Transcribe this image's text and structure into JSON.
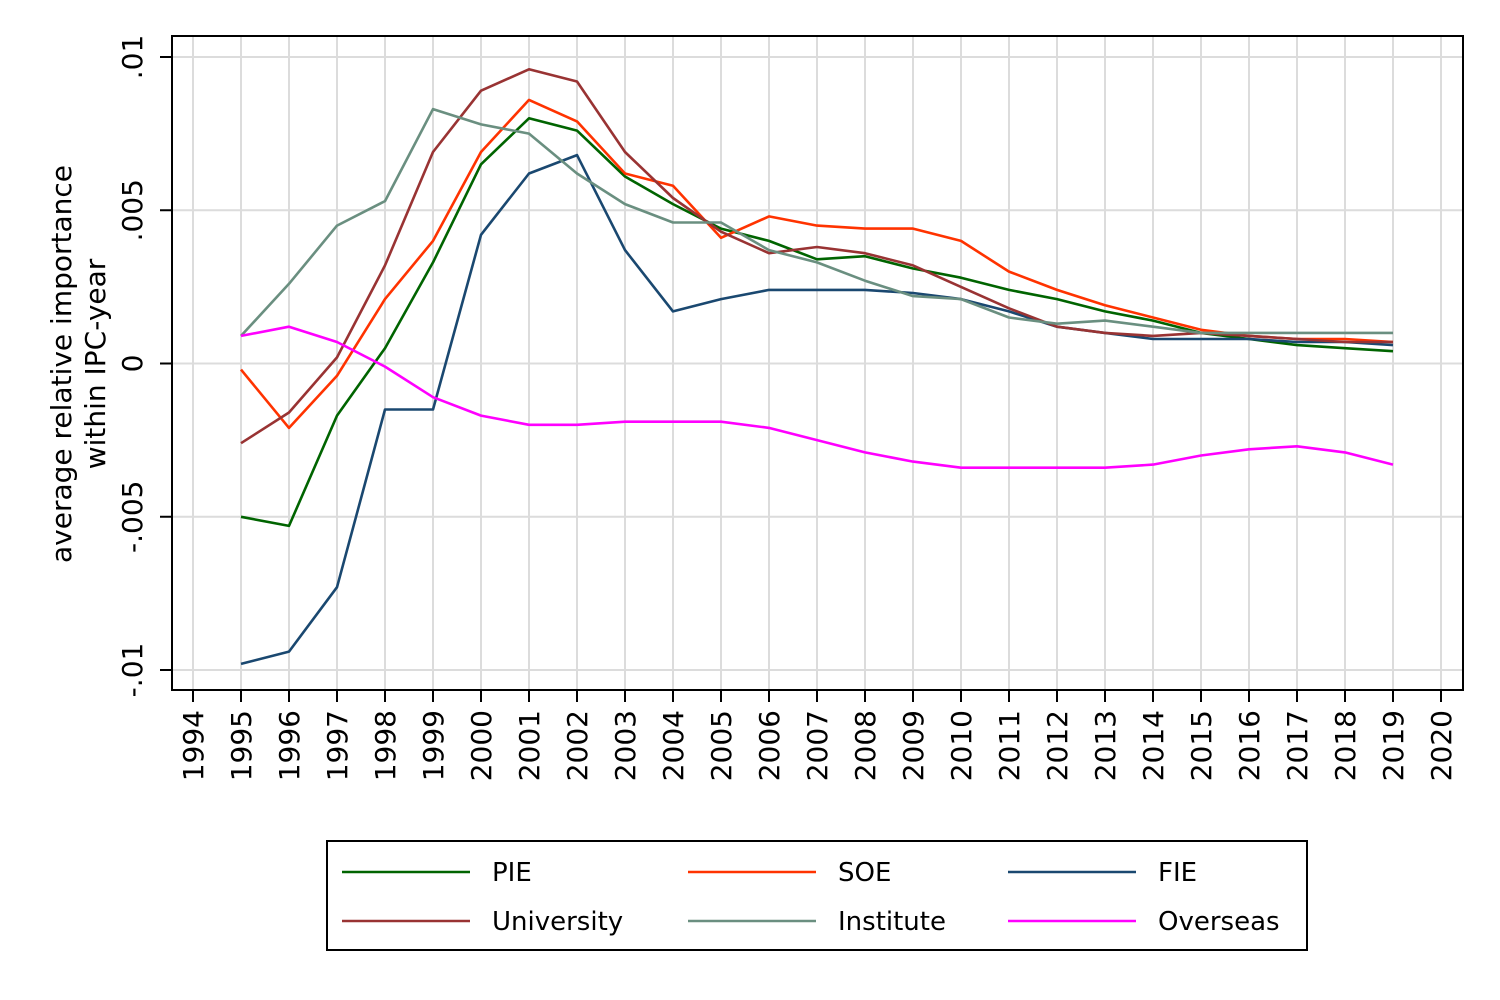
{
  "chart_data": {
    "type": "line",
    "title": "",
    "xlabel": "",
    "ylabel_lines": [
      "average relative importance",
      "within IPC-year"
    ],
    "xlim": [
      1994,
      2020
    ],
    "ylim": [
      -0.01,
      0.01
    ],
    "x_ticks": [
      1994,
      1995,
      1996,
      1997,
      1998,
      1999,
      2000,
      2001,
      2002,
      2003,
      2004,
      2005,
      2006,
      2007,
      2008,
      2009,
      2010,
      2011,
      2012,
      2013,
      2014,
      2015,
      2016,
      2017,
      2018,
      2019,
      2020
    ],
    "x_tick_labels": [
      "1994",
      "1995",
      "1996",
      "1997",
      "1998",
      "1999",
      "2000",
      "2001",
      "2002",
      "2003",
      "2004",
      "2005",
      "2006",
      "2007",
      "2008",
      "2009",
      "2010",
      "2011",
      "2012",
      "2013",
      "2014",
      "2015",
      "2016",
      "2017",
      "2018",
      "2019",
      "2020"
    ],
    "y_ticks": [
      -0.01,
      -0.005,
      0,
      0.005,
      0.01
    ],
    "y_tick_labels": [
      "-.01",
      "-.005",
      "0",
      ".005",
      ".01"
    ],
    "grid": true,
    "legend_position": "bottom",
    "x": [
      1995,
      1996,
      1997,
      1998,
      1999,
      2000,
      2001,
      2002,
      2003,
      2004,
      2005,
      2006,
      2007,
      2008,
      2009,
      2010,
      2011,
      2012,
      2013,
      2014,
      2015,
      2016,
      2017,
      2018,
      2019
    ],
    "series": [
      {
        "name": "PIE",
        "color": "#006400",
        "values": [
          -0.005,
          -0.0053,
          -0.0017,
          0.0005,
          0.0033,
          0.0065,
          0.008,
          0.0076,
          0.0061,
          0.0052,
          0.0044,
          0.004,
          0.0034,
          0.0035,
          0.0031,
          0.0028,
          0.0024,
          0.0021,
          0.0017,
          0.0014,
          0.001,
          0.0008,
          0.0006,
          0.0005,
          0.0004
        ]
      },
      {
        "name": "SOE",
        "color": "#FF3300",
        "values": [
          -0.0002,
          -0.0021,
          -0.0004,
          0.0021,
          0.004,
          0.0069,
          0.0086,
          0.0079,
          0.0062,
          0.0058,
          0.0041,
          0.0048,
          0.0045,
          0.0044,
          0.0044,
          0.004,
          0.003,
          0.0024,
          0.0019,
          0.0015,
          0.0011,
          0.0009,
          0.0008,
          0.0008,
          0.0007
        ]
      },
      {
        "name": "FIE",
        "color": "#1A4870",
        "values": [
          -0.0098,
          -0.0094,
          -0.0073,
          -0.0015,
          -0.0015,
          0.0042,
          0.0062,
          0.0068,
          0.0037,
          0.0017,
          0.0021,
          0.0024,
          0.0024,
          0.0024,
          0.0023,
          0.0021,
          0.0017,
          0.0012,
          0.001,
          0.0008,
          0.0008,
          0.0008,
          0.0007,
          0.0007,
          0.0006
        ]
      },
      {
        "name": "University",
        "color": "#993333",
        "values": [
          -0.0026,
          -0.0016,
          0.0002,
          0.0032,
          0.0069,
          0.0089,
          0.0096,
          0.0092,
          0.0069,
          0.0054,
          0.0043,
          0.0036,
          0.0038,
          0.0036,
          0.0032,
          0.0025,
          0.0018,
          0.0012,
          0.001,
          0.0009,
          0.001,
          0.0009,
          0.0008,
          0.0007,
          0.0007
        ]
      },
      {
        "name": "Institute",
        "color": "#6A8F80",
        "values": [
          0.0009,
          0.0026,
          0.0045,
          0.0053,
          0.0083,
          0.0078,
          0.0075,
          0.0062,
          0.0052,
          0.0046,
          0.0046,
          0.0037,
          0.0033,
          0.0027,
          0.0022,
          0.0021,
          0.0015,
          0.0013,
          0.0014,
          0.0012,
          0.001,
          0.001,
          0.001,
          0.001,
          0.001
        ]
      },
      {
        "name": "Overseas",
        "color": "#FF00FF",
        "values": [
          0.0009,
          0.0012,
          0.0007,
          -0.0001,
          -0.0011,
          -0.0017,
          -0.002,
          -0.002,
          -0.0019,
          -0.0019,
          -0.0019,
          -0.0021,
          -0.0025,
          -0.0029,
          -0.0032,
          -0.0034,
          -0.0034,
          -0.0034,
          -0.0034,
          -0.0033,
          -0.003,
          -0.0028,
          -0.0027,
          -0.0029,
          -0.0033
        ]
      }
    ]
  }
}
